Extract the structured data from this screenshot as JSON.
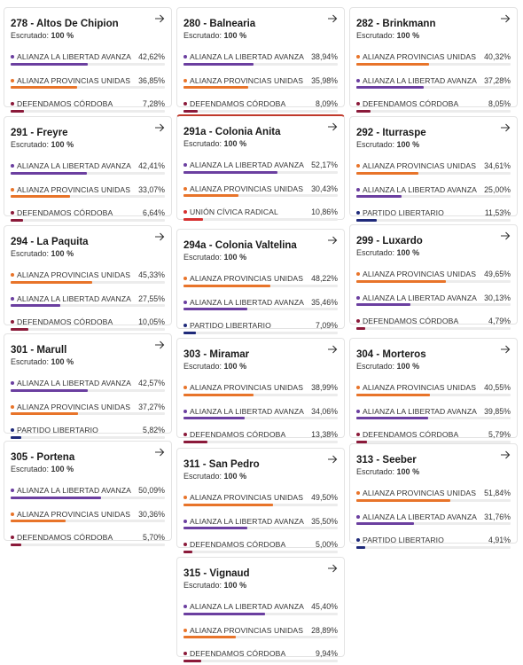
{
  "escrutado_label": "Escrutado:",
  "colors": {
    "ALIANZA LA LIBERTAD AVANZA": "#6b3fa0",
    "ALIANZA PROVINCIAS UNIDAS": "#e8742a",
    "DEFENDAMOS CÓRDOBA": "#8b1a3a",
    "PARTIDO LIBERTARIO": "#1f2a7a",
    "UNIÓN CÍVICA RADICAL": "#d62f2f"
  },
  "cards": [
    {
      "title": "278 - Altos De Chipion",
      "escrutado": "100 %",
      "rows": [
        {
          "party": "ALIANZA LA LIBERTAD AVANZA",
          "pct": "42,62%",
          "value": 42.62
        },
        {
          "party": "ALIANZA PROVINCIAS UNIDAS",
          "pct": "36,85%",
          "value": 36.85
        },
        {
          "party": "DEFENDAMOS CÓRDOBA",
          "pct": "7,28%",
          "value": 7.28
        }
      ]
    },
    {
      "title": "280 - Balnearia",
      "escrutado": "100 %",
      "rows": [
        {
          "party": "ALIANZA LA LIBERTAD AVANZA",
          "pct": "38,94%",
          "value": 38.94
        },
        {
          "party": "ALIANZA PROVINCIAS UNIDAS",
          "pct": "35,98%",
          "value": 35.98
        },
        {
          "party": "DEFENDAMOS CÓRDOBA",
          "pct": "8,09%",
          "value": 8.09
        }
      ]
    },
    {
      "title": "282 - Brinkmann",
      "escrutado": "100 %",
      "rows": [
        {
          "party": "ALIANZA PROVINCIAS UNIDAS",
          "pct": "40,32%",
          "value": 40.32
        },
        {
          "party": "ALIANZA LA LIBERTAD AVANZA",
          "pct": "37,28%",
          "value": 37.28
        },
        {
          "party": "DEFENDAMOS CÓRDOBA",
          "pct": "8,05%",
          "value": 8.05
        }
      ]
    },
    {
      "title": "291 - Freyre",
      "escrutado": "100 %",
      "rows": [
        {
          "party": "ALIANZA LA LIBERTAD AVANZA",
          "pct": "42,41%",
          "value": 42.41
        },
        {
          "party": "ALIANZA PROVINCIAS UNIDAS",
          "pct": "33,07%",
          "value": 33.07
        },
        {
          "party": "DEFENDAMOS CÓRDOBA",
          "pct": "6,64%",
          "value": 6.64
        }
      ]
    },
    {
      "title": "291a - Colonia Anita",
      "escrutado": "100 %",
      "highlight": true,
      "rows": [
        {
          "party": "ALIANZA LA LIBERTAD AVANZA",
          "pct": "52,17%",
          "value": 52.17
        },
        {
          "party": "ALIANZA PROVINCIAS UNIDAS",
          "pct": "30,43%",
          "value": 30.43
        },
        {
          "party": "UNIÓN CÍVICA RADICAL",
          "pct": "10,86%",
          "value": 10.86
        }
      ]
    },
    {
      "title": "292 - Iturraspe",
      "escrutado": "100 %",
      "rows": [
        {
          "party": "ALIANZA PROVINCIAS UNIDAS",
          "pct": "34,61%",
          "value": 34.61
        },
        {
          "party": "ALIANZA LA LIBERTAD AVANZA",
          "pct": "25,00%",
          "value": 25.0
        },
        {
          "party": "PARTIDO LIBERTARIO",
          "pct": "11,53%",
          "value": 11.53
        }
      ]
    },
    {
      "title": "294 - La Paquita",
      "escrutado": "100 %",
      "rows": [
        {
          "party": "ALIANZA PROVINCIAS UNIDAS",
          "pct": "45,33%",
          "value": 45.33
        },
        {
          "party": "ALIANZA LA LIBERTAD AVANZA",
          "pct": "27,55%",
          "value": 27.55
        },
        {
          "party": "DEFENDAMOS CÓRDOBA",
          "pct": "10,05%",
          "value": 10.05
        }
      ]
    },
    {
      "title": "294a - Colonia Valtelina",
      "escrutado": "100 %",
      "rows": [
        {
          "party": "ALIANZA PROVINCIAS UNIDAS",
          "pct": "48,22%",
          "value": 48.22
        },
        {
          "party": "ALIANZA LA LIBERTAD AVANZA",
          "pct": "35,46%",
          "value": 35.46
        },
        {
          "party": "PARTIDO LIBERTARIO",
          "pct": "7,09%",
          "value": 7.09
        }
      ]
    },
    {
      "title": "299 - Luxardo",
      "escrutado": "100 %",
      "rows": [
        {
          "party": "ALIANZA PROVINCIAS UNIDAS",
          "pct": "49,65%",
          "value": 49.65
        },
        {
          "party": "ALIANZA LA LIBERTAD AVANZA",
          "pct": "30,13%",
          "value": 30.13
        },
        {
          "party": "DEFENDAMOS CÓRDOBA",
          "pct": "4,79%",
          "value": 4.79
        }
      ]
    },
    {
      "title": "301 - Marull",
      "escrutado": "100 %",
      "rows": [
        {
          "party": "ALIANZA LA LIBERTAD AVANZA",
          "pct": "42,57%",
          "value": 42.57
        },
        {
          "party": "ALIANZA PROVINCIAS UNIDAS",
          "pct": "37,27%",
          "value": 37.27
        },
        {
          "party": "PARTIDO LIBERTARIO",
          "pct": "5,82%",
          "value": 5.82
        }
      ]
    },
    {
      "title": "303 - Miramar",
      "escrutado": "100 %",
      "rows": [
        {
          "party": "ALIANZA PROVINCIAS UNIDAS",
          "pct": "38,99%",
          "value": 38.99
        },
        {
          "party": "ALIANZA LA LIBERTAD AVANZA",
          "pct": "34,06%",
          "value": 34.06
        },
        {
          "party": "DEFENDAMOS CÓRDOBA",
          "pct": "13,38%",
          "value": 13.38
        }
      ]
    },
    {
      "title": "304 - Morteros",
      "escrutado": "100 %",
      "rows": [
        {
          "party": "ALIANZA PROVINCIAS UNIDAS",
          "pct": "40,55%",
          "value": 40.55
        },
        {
          "party": "ALIANZA LA LIBERTAD AVANZA",
          "pct": "39,85%",
          "value": 39.85
        },
        {
          "party": "DEFENDAMOS CÓRDOBA",
          "pct": "5,79%",
          "value": 5.79
        }
      ]
    },
    {
      "title": "305 - Portena",
      "escrutado": "100 %",
      "rows": [
        {
          "party": "ALIANZA LA LIBERTAD AVANZA",
          "pct": "50,09%",
          "value": 50.09
        },
        {
          "party": "ALIANZA PROVINCIAS UNIDAS",
          "pct": "30,36%",
          "value": 30.36
        },
        {
          "party": "DEFENDAMOS CÓRDOBA",
          "pct": "5,70%",
          "value": 5.7
        }
      ]
    },
    {
      "title": "311 - San Pedro",
      "escrutado": "100 %",
      "rows": [
        {
          "party": "ALIANZA PROVINCIAS UNIDAS",
          "pct": "49,50%",
          "value": 49.5
        },
        {
          "party": "ALIANZA LA LIBERTAD AVANZA",
          "pct": "35,50%",
          "value": 35.5
        },
        {
          "party": "DEFENDAMOS CÓRDOBA",
          "pct": "5,00%",
          "value": 5.0
        }
      ]
    },
    {
      "title": "313 - Seeber",
      "escrutado": "100 %",
      "rows": [
        {
          "party": "ALIANZA PROVINCIAS UNIDAS",
          "pct": "51,84%",
          "value": 51.84
        },
        {
          "party": "ALIANZA LA LIBERTAD AVANZA",
          "pct": "31,76%",
          "value": 31.76
        },
        {
          "party": "PARTIDO LIBERTARIO",
          "pct": "4,91%",
          "value": 4.91
        }
      ]
    },
    {
      "title": "315 - Vignaud",
      "escrutado": "100 %",
      "rows": [
        {
          "party": "ALIANZA LA LIBERTAD AVANZA",
          "pct": "45,40%",
          "value": 45.4
        },
        {
          "party": "ALIANZA PROVINCIAS UNIDAS",
          "pct": "28,89%",
          "value": 28.89
        },
        {
          "party": "DEFENDAMOS CÓRDOBA",
          "pct": "9,94%",
          "value": 9.94
        }
      ]
    }
  ]
}
